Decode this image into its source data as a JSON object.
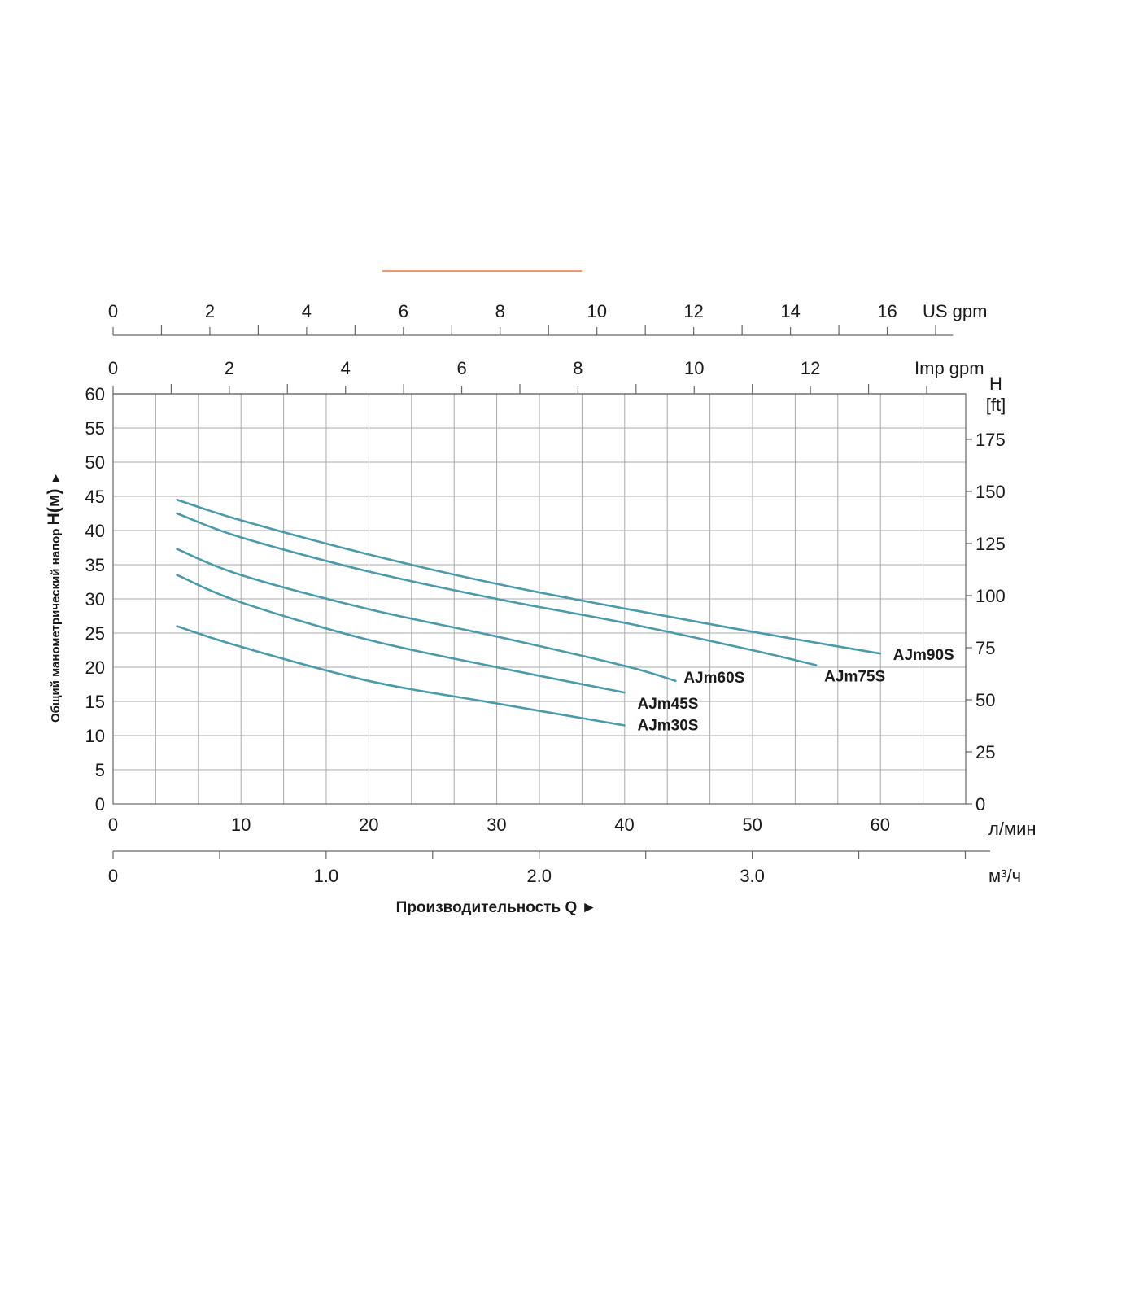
{
  "accent_color": "#e07a45",
  "curve_color": "#4a9aae",
  "chart_data": {
    "type": "line",
    "title": "",
    "xlabel": "Производительность Q",
    "xlabel_arrow": "►",
    "ylabel_prefix": "Общий манометрический напор",
    "ylabel_symbol": "H(м)",
    "ylabel_arrow": "►",
    "x_unit": "л/мин",
    "x_ticks": [
      0,
      10,
      20,
      30,
      40,
      50,
      60
    ],
    "xlim": [
      0,
      66.7
    ],
    "ylim": [
      0,
      60
    ],
    "y_ticks": [
      0,
      5,
      10,
      15,
      20,
      25,
      30,
      35,
      40,
      45,
      50,
      55,
      60
    ],
    "grid": true,
    "right_axis": {
      "title": "H",
      "unit": "[ft]",
      "ticks": [
        0,
        25,
        50,
        75,
        100,
        125,
        150,
        175
      ],
      "meters_per_unit": 0.3048
    },
    "top_axes": [
      {
        "unit": "US gpm",
        "ticks": [
          0,
          2,
          4,
          6,
          8,
          10,
          12,
          14,
          16
        ],
        "lpm_per_unit": 3.785
      },
      {
        "unit": "Imp gpm",
        "ticks": [
          0,
          2,
          4,
          6,
          8,
          10,
          12
        ],
        "lpm_per_unit": 4.546
      }
    ],
    "bottom_axis2": {
      "unit": "м³/ч",
      "ticks": [
        "0",
        "1.0",
        "2.0",
        "3.0"
      ],
      "tick_values": [
        0,
        1,
        2,
        3
      ],
      "lpm_per_unit": 16.667
    },
    "series": [
      {
        "name": "AJm90S",
        "x": [
          5,
          10,
          20,
          30,
          40,
          50,
          60
        ],
        "y": [
          44.5,
          41.5,
          36.5,
          32.2,
          28.6,
          25.2,
          22
        ]
      },
      {
        "name": "AJm75S",
        "x": [
          5,
          10,
          20,
          30,
          40,
          50,
          55
        ],
        "y": [
          42.5,
          39,
          34,
          30,
          26.5,
          22.5,
          20.3
        ]
      },
      {
        "name": "AJm60S",
        "x": [
          5,
          10,
          20,
          30,
          40,
          44
        ],
        "y": [
          37.3,
          33.5,
          28.5,
          24.5,
          20.2,
          18
        ]
      },
      {
        "name": "AJm45S",
        "x": [
          5,
          10,
          20,
          30,
          40
        ],
        "y": [
          33.5,
          29.5,
          24,
          20,
          16.3
        ]
      },
      {
        "name": "AJm30S",
        "x": [
          5,
          10,
          20,
          30,
          40
        ],
        "y": [
          26,
          23,
          18,
          14.7,
          11.5
        ]
      }
    ]
  }
}
